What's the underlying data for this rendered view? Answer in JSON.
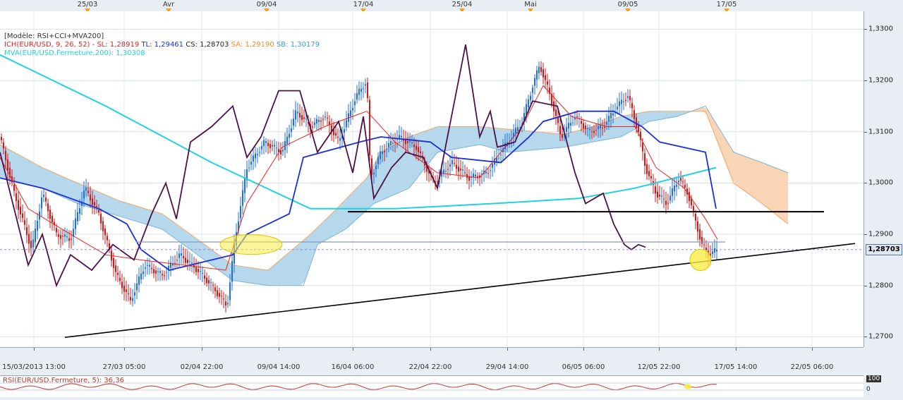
{
  "legend": {
    "model": "[Modèle: RSI+CCI+MVA200]",
    "ich": "ICH(EUR/USD, 9, 26, 52) -",
    "sl": "SL: 1,28919",
    "tl": "TL: 1,29461",
    "cs": "CS: 1,28703",
    "sa": "SA: 1,29190",
    "sb": "SB: 1,30179",
    "mva": "MVA(EUR/USD.Fermeture,200): 1,30308"
  },
  "top_labels": [
    "25/03",
    "Avr",
    "09/04",
    "17/04",
    "25/04",
    "Mai",
    "09/05",
    "17/05"
  ],
  "last_price": "1,28703",
  "rsi": {
    "label": "RSI(EUR/USD.Fermeture, 5): 36,36",
    "top": "100",
    "bottom": "0"
  },
  "colors": {
    "candle_up": "#1e6fd8",
    "candle_down": "#d01818",
    "tenkan": "#e8231d",
    "kijun": "#1a2fd6",
    "cloud_up": "#b6d8ec",
    "cloud_down": "#f8d5b4",
    "mva": "#1fd2e2",
    "cci": "#4b1048"
  },
  "chart_data": {
    "type": "line",
    "title": "",
    "y_ticks": [
      "1,3300",
      "1,3200",
      "1,3100",
      "1,3000",
      "1,2900",
      "1,2800",
      "1,2700"
    ],
    "ylim": [
      1.268,
      1.3335
    ],
    "x_ticks": [
      "15/03/2013 13:00",
      "27/03 05:00",
      "02/04 22:00",
      "09/04 14:00",
      "16/04 06:00",
      "22/04 22:00",
      "29/04 14:00",
      "06/05 06:00",
      "12/05 22:00",
      "17/05 14:00",
      "22/05 06:00"
    ],
    "price_path": [
      [
        0,
        1.309
      ],
      [
        20,
        1.298
      ],
      [
        45,
        1.287
      ],
      [
        60,
        1.298
      ],
      [
        80,
        1.29
      ],
      [
        100,
        1.289
      ],
      [
        120,
        1.299
      ],
      [
        140,
        1.294
      ],
      [
        165,
        1.282
      ],
      [
        185,
        1.277
      ],
      [
        205,
        1.284
      ],
      [
        230,
        1.282
      ],
      [
        255,
        1.286
      ],
      [
        280,
        1.283
      ],
      [
        300,
        1.28
      ],
      [
        322,
        1.276
      ],
      [
        333,
        1.289
      ],
      [
        350,
        1.303
      ],
      [
        375,
        1.308
      ],
      [
        400,
        1.306
      ],
      [
        420,
        1.314
      ],
      [
        440,
        1.311
      ],
      [
        460,
        1.313
      ],
      [
        480,
        1.308
      ],
      [
        505,
        1.317
      ],
      [
        520,
        1.32
      ],
      [
        525,
        1.301
      ],
      [
        540,
        1.306
      ],
      [
        565,
        1.309
      ],
      [
        590,
        1.307
      ],
      [
        615,
        1.3
      ],
      [
        640,
        1.304
      ],
      [
        665,
        1.301
      ],
      [
        690,
        1.302
      ],
      [
        715,
        1.307
      ],
      [
        740,
        1.312
      ],
      [
        755,
        1.319
      ],
      [
        765,
        1.323
      ],
      [
        780,
        1.317
      ],
      [
        795,
        1.309
      ],
      [
        815,
        1.313
      ],
      [
        835,
        1.31
      ],
      [
        855,
        1.311
      ],
      [
        875,
        1.315
      ],
      [
        890,
        1.317
      ],
      [
        905,
        1.31
      ],
      [
        915,
        1.303
      ],
      [
        930,
        1.298
      ],
      [
        945,
        1.296
      ],
      [
        962,
        1.301
      ],
      [
        975,
        1.298
      ],
      [
        985,
        1.293
      ],
      [
        995,
        1.288
      ],
      [
        1005,
        1.286
      ],
      [
        1017,
        1.287
      ]
    ],
    "series": [
      {
        "name": "MVA(EUR/USD.Fermeture,200)",
        "points": [
          [
            0,
            1.325
          ],
          [
            150,
            1.315
          ],
          [
            300,
            1.304
          ],
          [
            440,
            1.295
          ],
          [
            560,
            1.295
          ],
          [
            700,
            1.296
          ],
          [
            820,
            1.297
          ],
          [
            900,
            1.299
          ],
          [
            1015,
            1.303
          ]
        ]
      },
      {
        "name": "Kijun",
        "points": [
          [
            0,
            1.301
          ],
          [
            60,
            1.299
          ],
          [
            140,
            1.295
          ],
          [
            180,
            1.292
          ],
          [
            200,
            1.287
          ],
          [
            240,
            1.283
          ],
          [
            330,
            1.286
          ],
          [
            350,
            1.29
          ],
          [
            410,
            1.294
          ],
          [
            430,
            1.305
          ],
          [
            510,
            1.308
          ],
          [
            540,
            1.309
          ],
          [
            610,
            1.308
          ],
          [
            640,
            1.305
          ],
          [
            710,
            1.304
          ],
          [
            750,
            1.309
          ],
          [
            770,
            1.312
          ],
          [
            820,
            1.314
          ],
          [
            870,
            1.314
          ],
          [
            910,
            1.311
          ],
          [
            935,
            1.308
          ],
          [
            1000,
            1.306
          ],
          [
            1015,
            1.295
          ]
        ]
      },
      {
        "name": "Tenkan",
        "points": [
          [
            0,
            1.305
          ],
          [
            40,
            1.295
          ],
          [
            100,
            1.29
          ],
          [
            150,
            1.286
          ],
          [
            200,
            1.285
          ],
          [
            260,
            1.284
          ],
          [
            320,
            1.283
          ],
          [
            350,
            1.296
          ],
          [
            400,
            1.307
          ],
          [
            460,
            1.311
          ],
          [
            520,
            1.314
          ],
          [
            560,
            1.308
          ],
          [
            620,
            1.302
          ],
          [
            680,
            1.301
          ],
          [
            740,
            1.311
          ],
          [
            770,
            1.319
          ],
          [
            810,
            1.313
          ],
          [
            860,
            1.311
          ],
          [
            900,
            1.311
          ],
          [
            930,
            1.303
          ],
          [
            970,
            1.299
          ],
          [
            1000,
            1.293
          ],
          [
            1017,
            1.289
          ]
        ]
      },
      {
        "name": "CCI",
        "points": [
          [
            0,
            1.306
          ],
          [
            20,
            1.295
          ],
          [
            40,
            1.284
          ],
          [
            60,
            1.29
          ],
          [
            80,
            1.28
          ],
          [
            100,
            1.286
          ],
          [
            130,
            1.283
          ],
          [
            160,
            1.288
          ],
          [
            190,
            1.285
          ],
          [
            215,
            1.294
          ],
          [
            235,
            1.3
          ],
          [
            250,
            1.293
          ],
          [
            270,
            1.308
          ],
          [
            300,
            1.311
          ],
          [
            330,
            1.315
          ],
          [
            350,
            1.305
          ],
          [
            370,
            1.309
          ],
          [
            395,
            1.318
          ],
          [
            425,
            1.318
          ],
          [
            450,
            1.306
          ],
          [
            480,
            1.312
          ],
          [
            500,
            1.302
          ],
          [
            515,
            1.313
          ],
          [
            530,
            1.297
          ],
          [
            555,
            1.303
          ],
          [
            575,
            1.306
          ],
          [
            600,
            1.305
          ],
          [
            620,
            1.299
          ],
          [
            640,
            1.313
          ],
          [
            660,
            1.327
          ],
          [
            680,
            1.309
          ],
          [
            695,
            1.314
          ],
          [
            705,
            1.307
          ],
          [
            730,
            1.308
          ],
          [
            755,
            1.316
          ],
          [
            790,
            1.315
          ],
          [
            815,
            1.302
          ],
          [
            830,
            1.296
          ],
          [
            855,
            1.298
          ],
          [
            870,
            1.292
          ],
          [
            885,
            1.288
          ],
          [
            895,
            1.287
          ],
          [
            905,
            1.288
          ],
          [
            915,
            1.2875
          ]
        ]
      }
    ]
  }
}
